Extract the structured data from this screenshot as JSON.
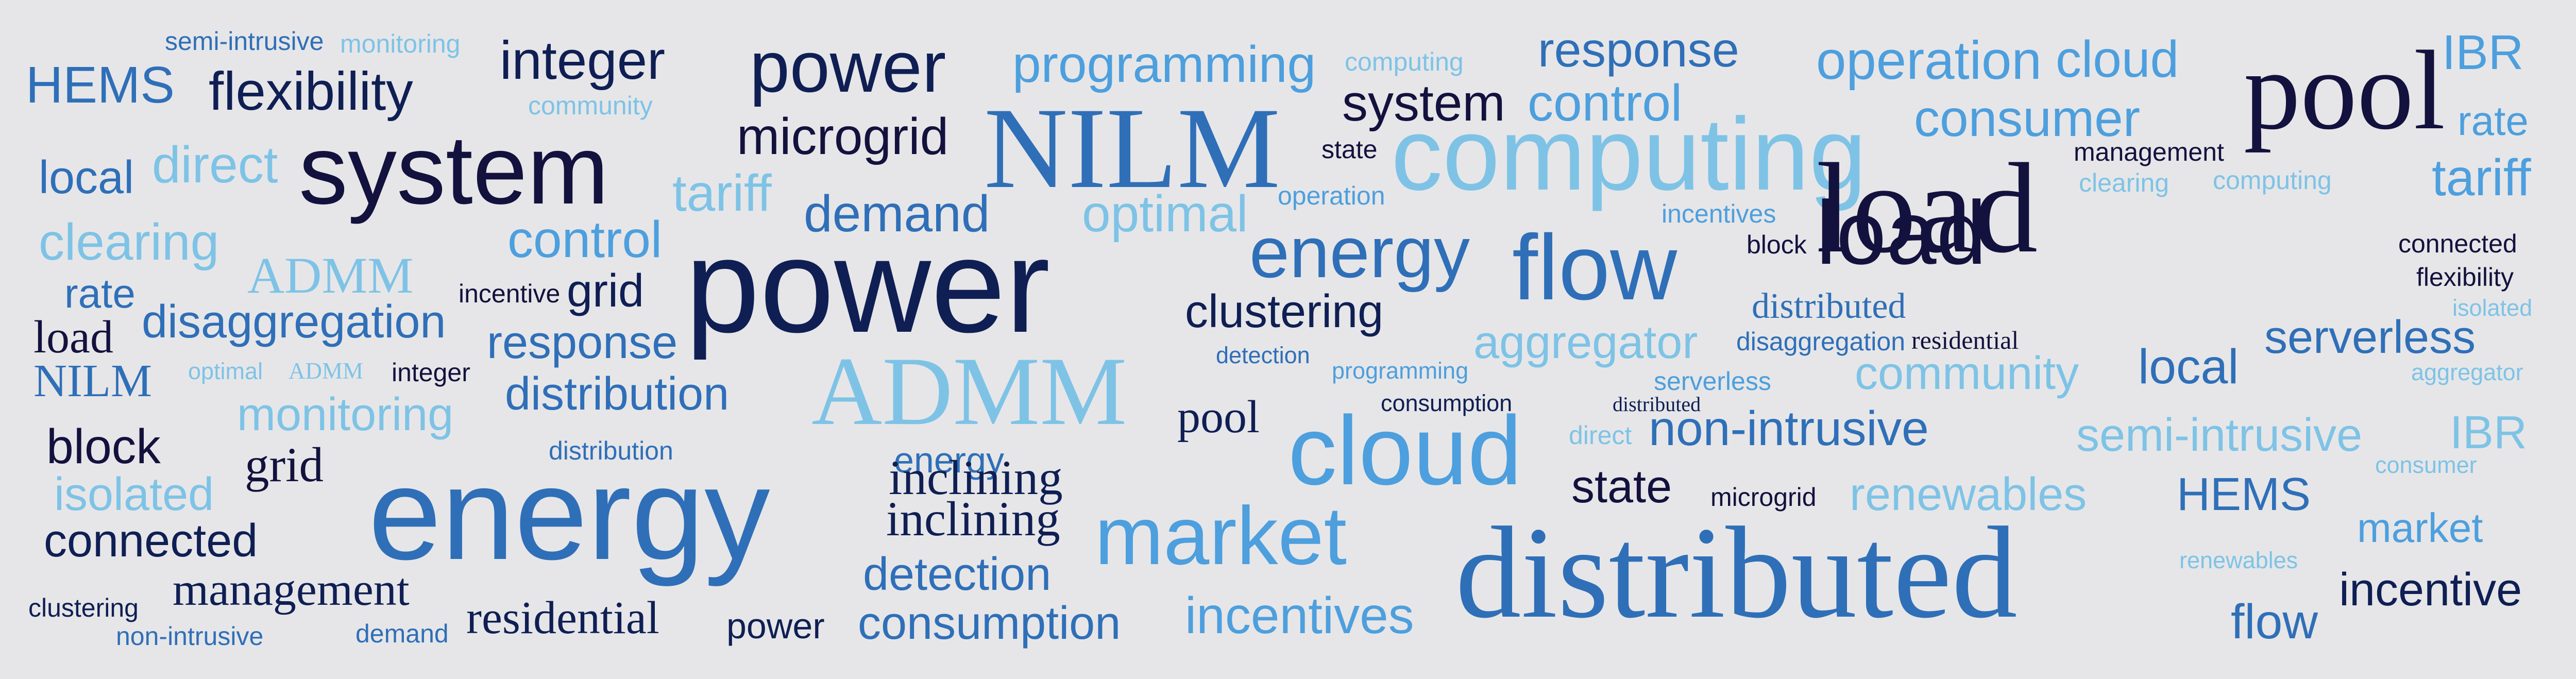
{
  "palette": {
    "background": "#e6e6e8",
    "navy": "#0f1f54",
    "darkest": "#13113d",
    "mid_blue": "#2f6fb8",
    "light_blue": "#7ec3e6",
    "sky": "#4d9fde"
  },
  "words": [
    "semi-intrusive",
    "monitoring",
    "integer",
    "power",
    "programming",
    "computing",
    "response",
    "operation",
    "cloud",
    "IBR",
    "HEMS",
    "flexibility",
    "community",
    "system",
    "control",
    "pool",
    "rate",
    "system",
    "microgrid",
    "NILM",
    "state",
    "computing",
    "consumer",
    "management",
    "local",
    "direct",
    "tariff",
    "demand",
    "optimal",
    "operation",
    "incentives",
    "clearing",
    "computing",
    "load",
    "tariff",
    "clearing",
    "control",
    "power",
    "energy",
    "flow",
    "block",
    "load",
    "connected",
    "ADMM",
    "incentive",
    "grid",
    "clustering",
    "distributed",
    "flexibility",
    "rate",
    "disaggregation",
    "isolated",
    "load",
    "response",
    "aggregator",
    "disaggregation",
    "residential",
    "serverless",
    "detection",
    "programming",
    "local",
    "NILM",
    "optimal",
    "ADMM",
    "integer",
    "distribution",
    "ADMM",
    "consumption",
    "serverless",
    "community",
    "aggregator",
    "monitoring",
    "pool",
    "distributed",
    "direct",
    "non-intrusive",
    "semi-intrusive",
    "IBR",
    "block",
    "cloud",
    "distribution",
    "energy",
    "consumer",
    "grid",
    "energy",
    "inclining",
    "state",
    "microgrid",
    "renewables",
    "isolated",
    "HEMS",
    "market",
    "inclining",
    "market",
    "connected",
    "renewables",
    "detection",
    "management",
    "distributed",
    "incentive",
    "clustering",
    "residential",
    "incentives",
    "flow",
    "non-intrusive",
    "demand",
    "power",
    "consumption"
  ]
}
